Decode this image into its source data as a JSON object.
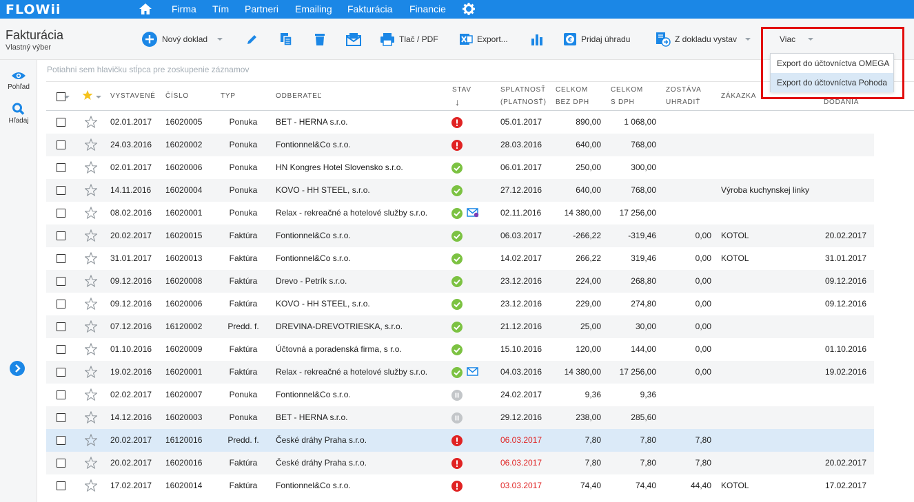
{
  "app": {
    "logo": "FLOWii",
    "nav": [
      "Firma",
      "Tím",
      "Partneri",
      "Emailing",
      "Fakturácia",
      "Financie"
    ]
  },
  "page": {
    "title": "Fakturácia",
    "subtitle": "Vlastný výber"
  },
  "toolbar": {
    "new_doc": "Nový doklad",
    "print_pdf": "Tlač / PDF",
    "export": "Export...",
    "add_payment": "Pridaj úhradu",
    "from_doc": "Z dokladu vystav",
    "more": "Viac"
  },
  "dropdown": {
    "items": [
      "Export do účtovníctva OMEGA",
      "Export do účtovníctva Pohoda"
    ],
    "highlighted_index": 1
  },
  "rail": {
    "view": "Pohľad",
    "search": "Hľadaj"
  },
  "grouping_hint": "Potiahni sem hlavičku stĺpca pre zoskupenie záznamov",
  "columns": {
    "issued": "VYSTAVENÉ",
    "number": "ČÍSLO",
    "type": "TYP",
    "customer": "ODBERATEĽ",
    "status": "STAV",
    "status_sort": "↓",
    "due_1": "SPLATNOSŤ",
    "due_2": "(PLATNOSŤ)",
    "net_1": "CELKOM",
    "net_2": "BEZ DPH",
    "gross_1": "CELKOM",
    "gross_2": "S DPH",
    "remain_1": "ZOSTÁVA",
    "remain_2": "UHRADIŤ",
    "order": "ZÁKAZKA",
    "delivery": "DODANIA"
  },
  "colors": {
    "accent": "#1b87e6",
    "status_error": "#e02323",
    "status_ok": "#7cc242",
    "status_paused": "#c3c6c9"
  },
  "rows": [
    {
      "issued": "02.01.2017",
      "number": "16020005",
      "type": "Ponuka",
      "customer": "BET - HERNA s.r.o.",
      "status": "error",
      "mail": "",
      "due": "05.01.2017",
      "overdue": false,
      "net": "890,00",
      "gross": "1 068,00",
      "remain": "",
      "order": "",
      "delivery": ""
    },
    {
      "issued": "24.03.2016",
      "number": "16020002",
      "type": "Ponuka",
      "customer": "Fontionnel&Co s.r.o.",
      "status": "error",
      "mail": "",
      "due": "28.03.2016",
      "overdue": false,
      "net": "640,00",
      "gross": "768,00",
      "remain": "",
      "order": "",
      "delivery": ""
    },
    {
      "issued": "02.01.2017",
      "number": "16020006",
      "type": "Ponuka",
      "customer": "HN Kongres Hotel Slovensko s.r.o.",
      "status": "ok",
      "mail": "",
      "due": "06.01.2017",
      "overdue": false,
      "net": "250,00",
      "gross": "300,00",
      "remain": "",
      "order": "",
      "delivery": ""
    },
    {
      "issued": "14.11.2016",
      "number": "16020004",
      "type": "Ponuka",
      "customer": "KOVO - HH STEEL, s.r.o.",
      "status": "ok",
      "mail": "",
      "due": "27.12.2016",
      "overdue": false,
      "net": "640,00",
      "gross": "768,00",
      "remain": "",
      "order": "Výroba kuchynskej linky",
      "delivery": ""
    },
    {
      "issued": "08.02.2016",
      "number": "16020001",
      "type": "Ponuka",
      "customer": "Relax - rekreačné a hotelové služby s.r.o.",
      "status": "ok",
      "mail": "mail-viewed-icon",
      "due": "02.11.2016",
      "overdue": false,
      "net": "14 380,00",
      "gross": "17 256,00",
      "remain": "",
      "order": "",
      "delivery": ""
    },
    {
      "issued": "20.02.2017",
      "number": "16020015",
      "type": "Faktúra",
      "customer": "Fontionnel&Co s.r.o.",
      "status": "ok",
      "mail": "",
      "due": "06.03.2017",
      "overdue": false,
      "net": "-266,22",
      "gross": "-319,46",
      "remain": "0,00",
      "order": "KOTOL",
      "delivery": "20.02.2017"
    },
    {
      "issued": "31.01.2017",
      "number": "16020013",
      "type": "Faktúra",
      "customer": "Fontionnel&Co s.r.o.",
      "status": "ok",
      "mail": "",
      "due": "14.02.2017",
      "overdue": false,
      "net": "266,22",
      "gross": "319,46",
      "remain": "0,00",
      "order": "KOTOL",
      "delivery": "31.01.2017"
    },
    {
      "issued": "09.12.2016",
      "number": "16020008",
      "type": "Faktúra",
      "customer": "Drevo - Petrík s.r.o.",
      "status": "ok",
      "mail": "",
      "due": "23.12.2016",
      "overdue": false,
      "net": "224,00",
      "gross": "268,80",
      "remain": "0,00",
      "order": "",
      "delivery": "09.12.2016"
    },
    {
      "issued": "09.12.2016",
      "number": "16020006",
      "type": "Faktúra",
      "customer": "KOVO - HH STEEL, s.r.o.",
      "status": "ok",
      "mail": "",
      "due": "23.12.2016",
      "overdue": false,
      "net": "229,00",
      "gross": "274,80",
      "remain": "0,00",
      "order": "",
      "delivery": "09.12.2016"
    },
    {
      "issued": "07.12.2016",
      "number": "16120002",
      "type": "Predd. f.",
      "customer": "DREVINA-DREVOTRIESKA, s.r.o.",
      "status": "ok",
      "mail": "",
      "due": "21.12.2016",
      "overdue": false,
      "net": "25,00",
      "gross": "30,00",
      "remain": "0,00",
      "order": "",
      "delivery": ""
    },
    {
      "issued": "01.10.2016",
      "number": "16020009",
      "type": "Faktúra",
      "customer": "Účtovná a poradenská firma, s r.o.",
      "status": "ok",
      "mail": "",
      "due": "15.10.2016",
      "overdue": false,
      "net": "120,00",
      "gross": "144,00",
      "remain": "0,00",
      "order": "",
      "delivery": "01.10.2016"
    },
    {
      "issued": "19.02.2016",
      "number": "16020001",
      "type": "Faktúra",
      "customer": "Relax - rekreačné a hotelové služby s.r.o.",
      "status": "ok",
      "mail": "mail-icon",
      "due": "04.03.2016",
      "overdue": false,
      "net": "14 380,00",
      "gross": "17 256,00",
      "remain": "0,00",
      "order": "",
      "delivery": "19.02.2016"
    },
    {
      "issued": "02.02.2017",
      "number": "16020007",
      "type": "Ponuka",
      "customer": "Fontionnel&Co s.r.o.",
      "status": "paused",
      "mail": "",
      "due": "24.02.2017",
      "overdue": false,
      "net": "9,36",
      "gross": "9,36",
      "remain": "",
      "order": "",
      "delivery": ""
    },
    {
      "issued": "14.12.2016",
      "number": "16020003",
      "type": "Ponuka",
      "customer": "BET - HERNA s.r.o.",
      "status": "paused",
      "mail": "",
      "due": "29.12.2016",
      "overdue": false,
      "net": "238,00",
      "gross": "285,60",
      "remain": "",
      "order": "",
      "delivery": ""
    },
    {
      "issued": "20.02.2017",
      "number": "16120016",
      "type": "Predd. f.",
      "customer": "České dráhy Praha s.r.o.",
      "status": "error",
      "mail": "",
      "due": "06.03.2017",
      "overdue": true,
      "net": "7,80",
      "gross": "7,80",
      "remain": "7,80",
      "order": "",
      "delivery": "",
      "selected": true
    },
    {
      "issued": "20.02.2017",
      "number": "16020016",
      "type": "Faktúra",
      "customer": "České dráhy Praha s.r.o.",
      "status": "error",
      "mail": "",
      "due": "06.03.2017",
      "overdue": true,
      "net": "7,80",
      "gross": "7,80",
      "remain": "7,80",
      "order": "",
      "delivery": "20.02.2017"
    },
    {
      "issued": "17.02.2017",
      "number": "16020014",
      "type": "Faktúra",
      "customer": "Fontionnel&Co s.r.o.",
      "status": "error",
      "mail": "",
      "due": "03.03.2017",
      "overdue": true,
      "net": "74,40",
      "gross": "74,40",
      "remain": "44,40",
      "order": "KOTOL",
      "delivery": "17.02.2017"
    }
  ]
}
